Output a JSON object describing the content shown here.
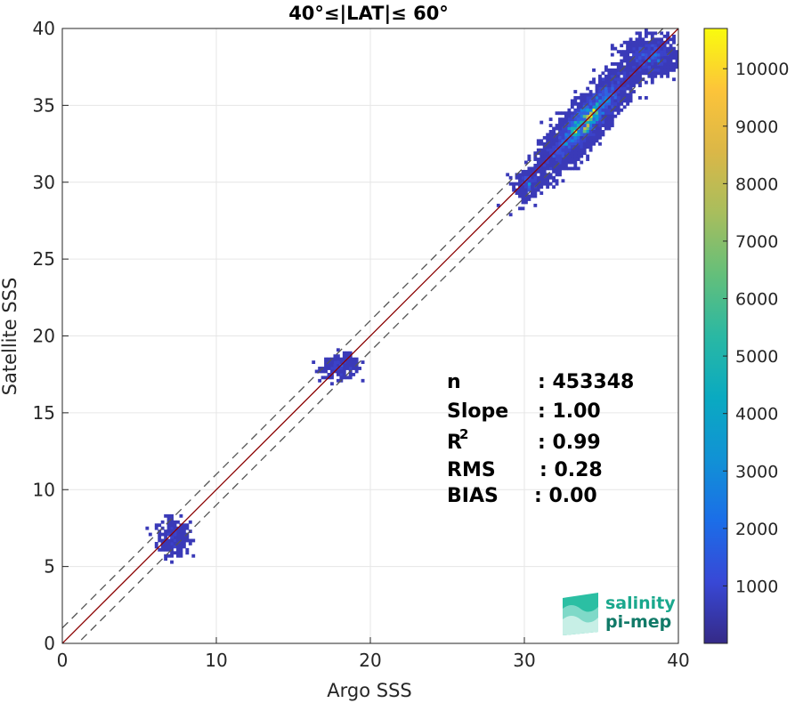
{
  "chart_data": {
    "type": "heatmap",
    "title": "40°≤|LAT|≤ 60°",
    "xlabel": "Argo SSS",
    "ylabel": "Satellite SSS",
    "xlim": [
      0,
      40
    ],
    "ylim": [
      0,
      40
    ],
    "xticks": [
      0,
      10,
      20,
      30,
      40
    ],
    "yticks": [
      0,
      5,
      10,
      15,
      20,
      25,
      30,
      35,
      40
    ],
    "grid": true,
    "colorbar": {
      "range": [
        0,
        10700
      ],
      "ticks": [
        1000,
        2000,
        3000,
        4000,
        5000,
        6000,
        7000,
        8000,
        9000,
        10000
      ],
      "colormap": "parula"
    },
    "reference_lines": [
      {
        "name": "1:1",
        "slope": 1,
        "intercept": 0,
        "color": "#8b0000",
        "style": "solid"
      },
      {
        "name": "+1",
        "slope": 1,
        "intercept": 1,
        "color": "#555555",
        "style": "dashed"
      },
      {
        "name": "-1",
        "slope": 1,
        "intercept": -1,
        "color": "#555555",
        "style": "dashed"
      }
    ],
    "clusters": [
      {
        "x": 7.2,
        "y": 6.9,
        "sx": 0.5,
        "sy": 0.6,
        "density": "low"
      },
      {
        "x": 18.1,
        "y": 18.0,
        "sx": 0.6,
        "sy": 0.35,
        "density": "low"
      },
      {
        "x": 30.2,
        "y": 29.9,
        "sx": 0.4,
        "sy": 0.4,
        "density": "low"
      },
      {
        "x": 34.0,
        "y": 34.0,
        "sx": 1.5,
        "sy": 1.3,
        "density": "high",
        "peak": 10700
      },
      {
        "x": 38.2,
        "y": 38.2,
        "sx": 0.8,
        "sy": 0.6,
        "density": "medium"
      }
    ],
    "stats_labels": [
      "n",
      "Slope",
      "R",
      "RMS",
      "BIAS"
    ],
    "stats_values": [
      ": 453348",
      ": 1.00",
      ": 0.99",
      ": 0.28",
      ": 0.00"
    ],
    "r_superscript": "2"
  },
  "logo": {
    "line1": "salinity",
    "line2": "pi-mep"
  }
}
